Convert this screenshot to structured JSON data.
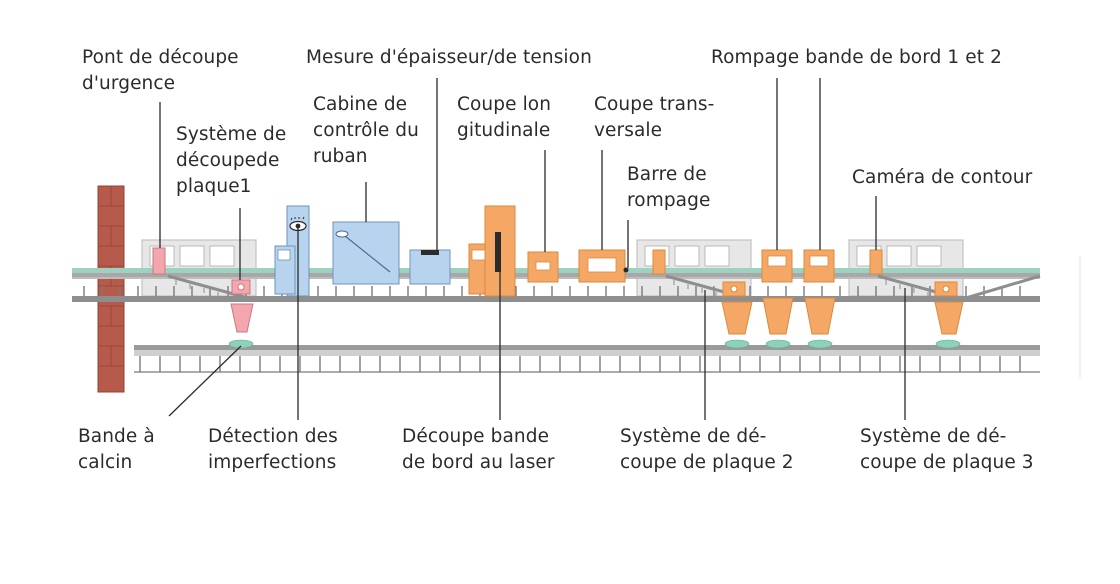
{
  "colors": {
    "text": "#2b2b2b",
    "orange": "#f5a865",
    "orange_stroke": "#d98a3e",
    "blue": "#b7d3ee",
    "blue_stroke": "#6f95bb",
    "pink": "#f3a6ad",
    "pink_stroke": "#c97a80",
    "brick": "#b65b4b",
    "glass_green": "#7fc9b5",
    "gray": "#d6d6d6",
    "conveyor": "#8e8e8e"
  },
  "labels": {
    "pont": [
      "Pont de découpe",
      "d'urgence"
    ],
    "mesure": [
      "Mesure d'épaisseur/de tension"
    ],
    "rompage_bande": [
      "Rompage bande de bord 1 et 2"
    ],
    "cabine": [
      "Cabine de",
      "contrôle du",
      "ruban"
    ],
    "coupe_long": [
      "Coupe lon",
      "gitudinale"
    ],
    "coupe_trans": [
      "Coupe trans-",
      "versale"
    ],
    "systeme1": [
      "Système de",
      "découpede",
      "plaque1"
    ],
    "barre": [
      "Barre de",
      "rompage"
    ],
    "camera": [
      "Caméra de contour"
    ],
    "bande_calcin": [
      "Bande à",
      "calcin"
    ],
    "detection": [
      "Détection des",
      "imperfections"
    ],
    "decoupe_laser": [
      "Découpe bande",
      "de bord au laser"
    ],
    "systeme2": [
      "Système de dé-",
      "coupe de plaque 2"
    ],
    "systeme3": [
      "Système de dé-",
      "coupe de plaque 3"
    ]
  }
}
